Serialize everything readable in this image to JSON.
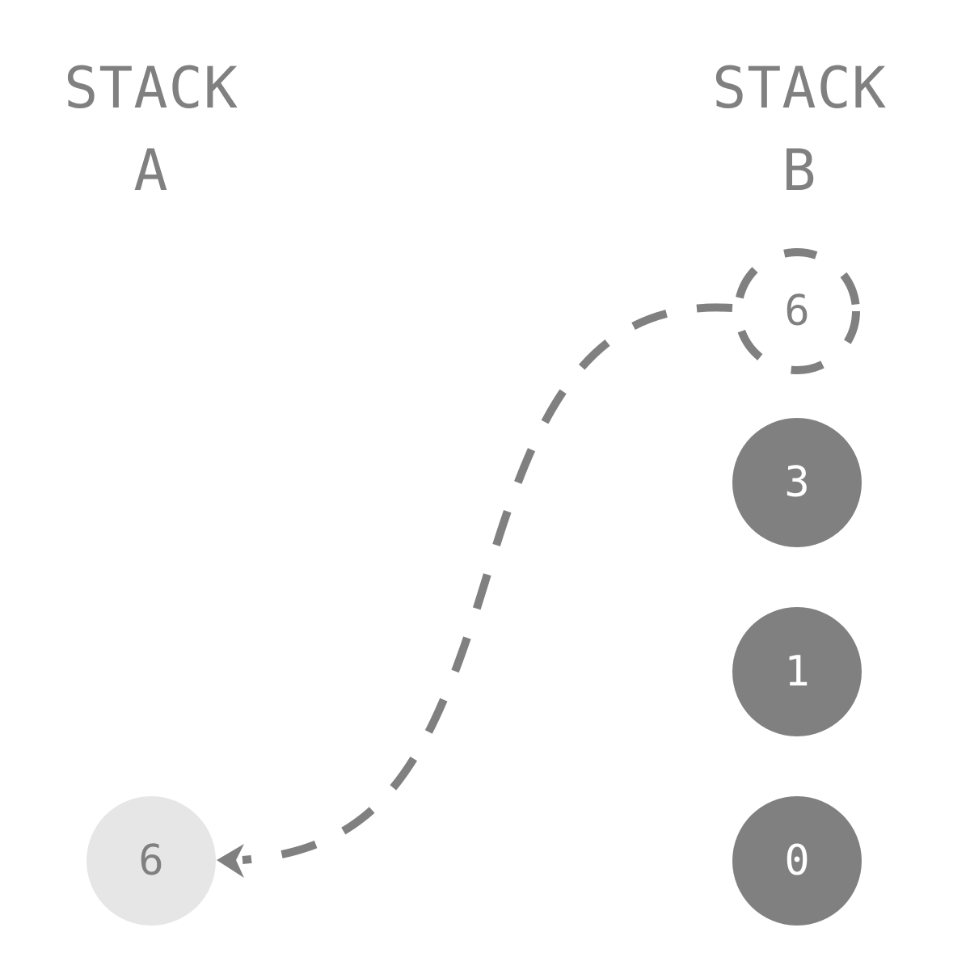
{
  "stack_a": {
    "title_line1": "STACK",
    "title_line2": "A",
    "items": [
      {
        "label": "6",
        "state": "moved-in"
      }
    ]
  },
  "stack_b": {
    "title_line1": "STACK",
    "title_line2": "B",
    "ghost": {
      "label": "6",
      "state": "moved-out"
    },
    "items": [
      {
        "label": "3"
      },
      {
        "label": "1"
      },
      {
        "label": "0"
      }
    ]
  },
  "colors": {
    "filled_node": "#808080",
    "filled_text": "#ffffff",
    "light_node": "#e6e6e6",
    "light_text": "#808080",
    "ghost_stroke": "#808080",
    "arrow": "#808080",
    "title": "#808080"
  }
}
